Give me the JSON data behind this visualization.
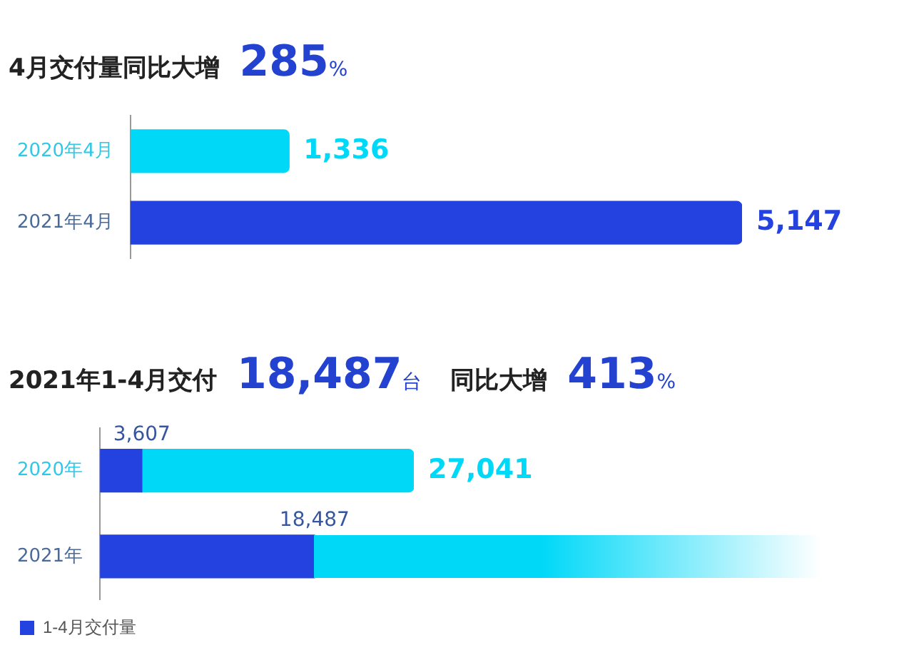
{
  "chart_data": [
    {
      "type": "bar",
      "title": "4月交付量同比大增 285%",
      "orientation": "horizontal",
      "categories": [
        "2020年4月",
        "2021年4月"
      ],
      "values": [
        1336,
        5147
      ],
      "colors": [
        "#00d8f8",
        "#2342e0"
      ],
      "value_labels": [
        "1,336",
        "5,147"
      ]
    },
    {
      "type": "bar",
      "title": "2021年1-4月交付 18,487台 同比大增 413%",
      "orientation": "horizontal",
      "stacked": true,
      "categories": [
        "2020年",
        "2021年"
      ],
      "legend": "bottom left",
      "totals": [
        "27,041",
        null
      ],
      "series": [
        {
          "name": "1-4月交付量",
          "color": "#2342e0",
          "values": [
            3607,
            18487
          ],
          "value_labels": [
            "3,607",
            "18,487"
          ]
        },
        {
          "color": "#00d8f8",
          "values": [
            23434,
            null
          ]
        }
      ]
    }
  ]
}
